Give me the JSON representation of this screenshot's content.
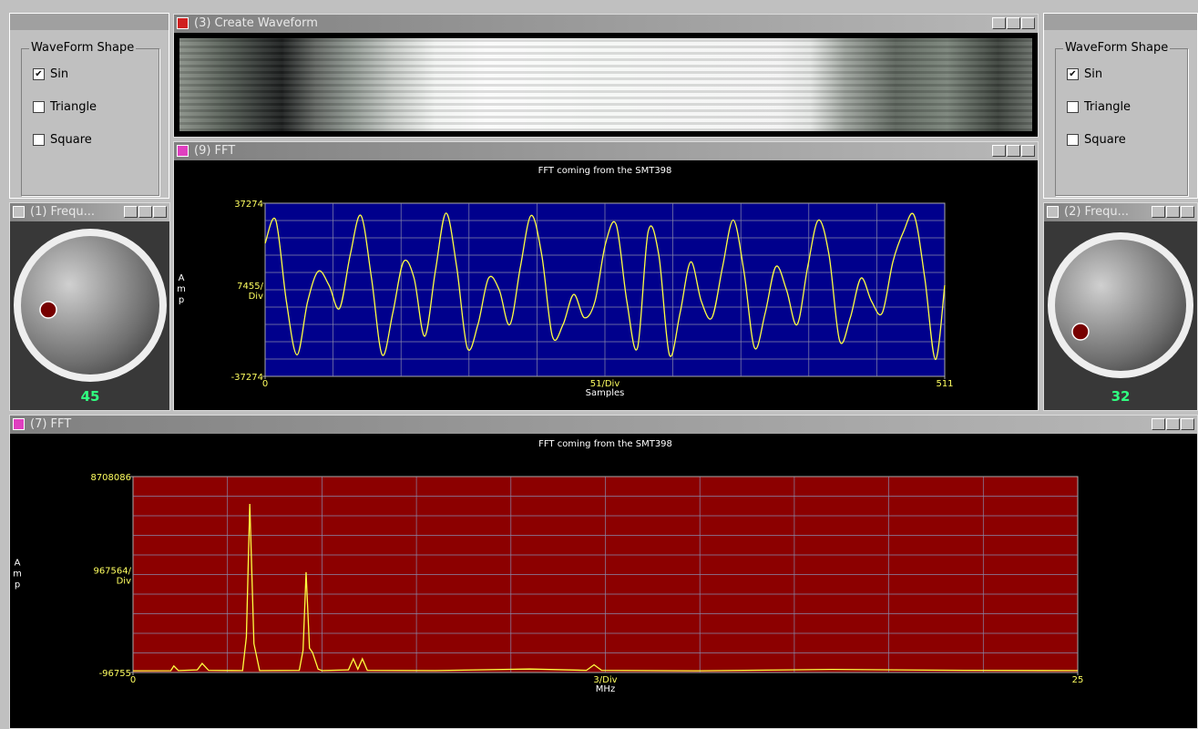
{
  "left_panel": {
    "group_title": "WaveForm Shape",
    "options": [
      {
        "label": "Sin",
        "checked": true
      },
      {
        "label": "Triangle",
        "checked": false
      },
      {
        "label": "Square",
        "checked": false
      }
    ]
  },
  "right_panel": {
    "group_title": "WaveForm Shape",
    "options": [
      {
        "label": "Sin",
        "checked": true
      },
      {
        "label": "Triangle",
        "checked": false
      },
      {
        "label": "Square",
        "checked": false
      }
    ]
  },
  "windows": {
    "create_waveform": {
      "title": "(3) Create Waveform"
    },
    "knob1": {
      "title": "(1) Frequ...",
      "value": 45
    },
    "knob2": {
      "title": "(2) Frequ...",
      "value": 32
    },
    "fft9": {
      "title": "(9) FFT",
      "chart_data": {
        "type": "line",
        "title": "FFT coming from the SMT398",
        "x_label": "Samples",
        "y_label": "Amp",
        "x_div_label": "51/Div",
        "y_div_label": "7455/Div",
        "color": "#ffff40",
        "background": "#00008c",
        "grid": true,
        "xlim": [
          0,
          511
        ],
        "ylim": [
          -37274,
          37274
        ],
        "xticks": [
          0,
          511
        ],
        "yticks": [
          37274,
          -37274
        ],
        "x": [
          0,
          8,
          16,
          24,
          32,
          40,
          48,
          56,
          64,
          72,
          80,
          88,
          96,
          104,
          112,
          120,
          128,
          136,
          144,
          152,
          160,
          168,
          176,
          184,
          192,
          200,
          208,
          216,
          224,
          232,
          240,
          248,
          256,
          264,
          272,
          280,
          288,
          296,
          304,
          312,
          320,
          328,
          336,
          344,
          352,
          360,
          368,
          376,
          384,
          392,
          400,
          408,
          416,
          424,
          432,
          440,
          448,
          456,
          464,
          472,
          480,
          488,
          496,
          504,
          511
        ],
        "values": [
          20000,
          30000,
          -5000,
          -28000,
          -5000,
          8000,
          2000,
          -8000,
          15000,
          32000,
          5000,
          -28000,
          -10000,
          12000,
          5000,
          -20000,
          8000,
          33000,
          10000,
          -25000,
          -15000,
          5000,
          0,
          -15000,
          10000,
          32000,
          15000,
          -20000,
          -15000,
          -2000,
          -12000,
          -5000,
          20000,
          28000,
          -5000,
          -25000,
          25000,
          15000,
          -28000,
          -10000,
          12000,
          -5000,
          -12000,
          10000,
          30000,
          8000,
          -25000,
          -10000,
          10000,
          0,
          -15000,
          10000,
          30000,
          15000,
          -22000,
          -12000,
          5000,
          -5000,
          -10000,
          12000,
          25000,
          32000,
          5000,
          -30000,
          2000
        ]
      }
    },
    "fft7": {
      "title": "(7) FFT",
      "chart_data": {
        "type": "line",
        "title": "FFT coming from the SMT398",
        "x_label": "MHz",
        "y_label": "Amp",
        "x_div_label": "3/Div",
        "y_div_label": "967564/Div",
        "color": "#ffff40",
        "background": "#8c0000",
        "grid": true,
        "xlim": [
          0,
          25
        ],
        "ylim": [
          -96755,
          8708086
        ],
        "xticks": [
          0,
          25
        ],
        "yticks": [
          8708086,
          -96755
        ],
        "x": [
          0,
          1.0,
          1.08,
          1.2,
          1.7,
          1.83,
          2.0,
          2.9,
          3.0,
          3.09,
          3.2,
          3.35,
          4.4,
          4.5,
          4.58,
          4.67,
          4.75,
          4.9,
          5.0,
          5.7,
          5.83,
          5.95,
          6.07,
          6.2,
          8,
          10.5,
          12.0,
          12.2,
          12.4,
          15,
          18.5,
          22,
          25
        ],
        "values": [
          -20000,
          -15000,
          200000,
          -10000,
          20000,
          310000,
          0,
          -10000,
          1500000,
          7480000,
          1200000,
          -10000,
          0,
          900000,
          4410000,
          1000000,
          800000,
          50000,
          -10000,
          20000,
          520000,
          50000,
          520000,
          0,
          -10000,
          60000,
          0,
          250000,
          0,
          -20000,
          40000,
          0,
          -10000
        ]
      }
    }
  }
}
